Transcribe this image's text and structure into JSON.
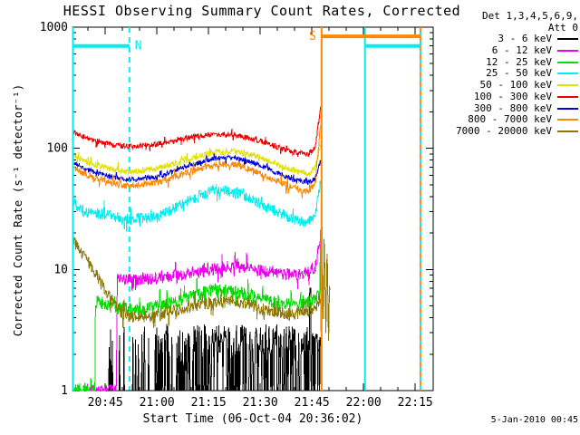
{
  "title": "HESSI Observing Summary Count Rates, Corrected",
  "footer_timestamp": "5-Jan-2010 00:45",
  "legend": {
    "header_line1": "Det 1,3,4,5,6,9,",
    "header_line2": "Att 0",
    "entries": [
      {
        "label": "3 - 6 keV",
        "color": "#000000"
      },
      {
        "label": "6 - 12 keV",
        "color": "#EE00EE"
      },
      {
        "label": "12 - 25 keV",
        "color": "#00DD00"
      },
      {
        "label": "25 - 50 keV",
        "color": "#00EEEE"
      },
      {
        "label": "50 - 100 keV",
        "color": "#E2E200"
      },
      {
        "label": "100 - 300 keV",
        "color": "#EE0000"
      },
      {
        "label": "300 - 800 keV",
        "color": "#0000DD"
      },
      {
        "label": "800 - 7000 keV",
        "color": "#FF8800"
      },
      {
        "label": "7000 - 20000 keV",
        "color": "#8E7700"
      }
    ]
  },
  "axes": {
    "xlabel": "Start Time (06-Oct-04 20:36:02)",
    "ylabel": "Corrected Count Rate (s⁻¹ detector⁻¹)",
    "y_scale": "log",
    "y_range": [
      1,
      1000
    ],
    "x_minor_step_min": 5,
    "x_ticks": [
      {
        "t": 9,
        "label": "20:45"
      },
      {
        "t": 24,
        "label": "21:00"
      },
      {
        "t": 39,
        "label": "21:15"
      },
      {
        "t": 54,
        "label": "21:30"
      },
      {
        "t": 69,
        "label": "21:45"
      },
      {
        "t": 84,
        "label": "22:00"
      },
      {
        "t": 99,
        "label": "22:15"
      }
    ],
    "y_ticks": [
      {
        "v": 1000,
        "label": "1000"
      },
      {
        "v": 100,
        "label": "100"
      },
      {
        "v": 10,
        "label": "10"
      },
      {
        "v": 1,
        "label": "1"
      }
    ]
  },
  "chart_data": {
    "type": "line",
    "title": "HESSI Observing Summary Count Rates, Corrected",
    "x_unit": "minutes after 20:36:02 on 06-Oct-04",
    "series": [
      {
        "name": "3 - 6 keV",
        "color": "#000000",
        "style": "telegraph",
        "t_range": [
          10,
          71.8
        ],
        "base": 1.0,
        "high_log_range": [
          0.3,
          0.55
        ],
        "density_phases": [
          [
            25,
            0.14
          ],
          [
            38,
            0.32
          ],
          [
            72,
            0.6
          ]
        ],
        "spike": {
          "t": 68.5,
          "value": 7
        }
      },
      {
        "name": "6 - 12 keV",
        "color": "#EE00EE",
        "noise": 0.05,
        "points": [
          [
            3,
            1.02
          ],
          [
            12.3,
            1.02
          ],
          [
            12.4,
            8.5
          ],
          [
            20,
            8.2
          ],
          [
            30,
            9
          ],
          [
            40,
            10
          ],
          [
            48,
            10.5
          ],
          [
            56,
            9.5
          ],
          [
            64,
            9
          ],
          [
            70,
            10
          ],
          [
            71.6,
            20
          ],
          [
            71.9,
            12
          ]
        ]
      },
      {
        "name": "12 - 25 keV",
        "color": "#00DD00",
        "noise": 0.055,
        "points": [
          [
            -0.4,
            1.02
          ],
          [
            6.0,
            1.02
          ],
          [
            6.1,
            5.5
          ],
          [
            12,
            4.8
          ],
          [
            20,
            4.6
          ],
          [
            30,
            5.5
          ],
          [
            40,
            6.8
          ],
          [
            48,
            6.5
          ],
          [
            56,
            5.5
          ],
          [
            62,
            5.2
          ],
          [
            68,
            5.4
          ],
          [
            71.2,
            6
          ],
          [
            71.5,
            22
          ],
          [
            71.7,
            1.0
          ]
        ]
      },
      {
        "name": "25 - 50 keV",
        "color": "#00EEEE",
        "noise": 0.045,
        "points": [
          [
            -0.4,
            36
          ],
          [
            3,
            30
          ],
          [
            10,
            28
          ],
          [
            16,
            26
          ],
          [
            24,
            27
          ],
          [
            34,
            38
          ],
          [
            42,
            47
          ],
          [
            48,
            42
          ],
          [
            56,
            33
          ],
          [
            62,
            27
          ],
          [
            67,
            24
          ],
          [
            70,
            27
          ],
          [
            71.6,
            58
          ],
          [
            72,
            40
          ]
        ]
      },
      {
        "name": "50 - 100 keV",
        "color": "#E2E200",
        "noise": 0.026,
        "points": [
          [
            -0.4,
            87
          ],
          [
            4,
            76
          ],
          [
            10,
            68
          ],
          [
            16,
            64
          ],
          [
            24,
            68
          ],
          [
            32,
            80
          ],
          [
            40,
            92
          ],
          [
            46,
            95
          ],
          [
            52,
            88
          ],
          [
            58,
            76
          ],
          [
            64,
            66
          ],
          [
            68,
            62
          ],
          [
            70,
            70
          ],
          [
            71.6,
            110
          ],
          [
            72,
            85
          ]
        ]
      },
      {
        "name": "100 - 300 keV",
        "color": "#EE0000",
        "noise": 0.022,
        "points": [
          [
            -0.4,
            135
          ],
          [
            4,
            120
          ],
          [
            10,
            108
          ],
          [
            16,
            103
          ],
          [
            24,
            108
          ],
          [
            32,
            122
          ],
          [
            40,
            131
          ],
          [
            46,
            129
          ],
          [
            52,
            120
          ],
          [
            58,
            105
          ],
          [
            64,
            92
          ],
          [
            68,
            90
          ],
          [
            70,
            100
          ],
          [
            71.6,
            235
          ],
          [
            72,
            130
          ]
        ]
      },
      {
        "name": "300 - 800 keV",
        "color": "#0000DD",
        "noise": 0.02,
        "points": [
          [
            -0.4,
            76
          ],
          [
            4,
            66
          ],
          [
            10,
            58
          ],
          [
            16,
            55
          ],
          [
            24,
            58
          ],
          [
            32,
            70
          ],
          [
            40,
            82
          ],
          [
            46,
            84
          ],
          [
            52,
            76
          ],
          [
            58,
            64
          ],
          [
            64,
            55
          ],
          [
            68,
            52
          ],
          [
            70,
            57
          ],
          [
            71.6,
            80
          ],
          [
            72,
            65
          ]
        ]
      },
      {
        "name": "800 - 7000 keV",
        "color": "#FF8800",
        "noise": 0.028,
        "points": [
          [
            -0.4,
            69
          ],
          [
            4,
            60
          ],
          [
            10,
            52
          ],
          [
            16,
            49
          ],
          [
            24,
            52
          ],
          [
            32,
            62
          ],
          [
            40,
            72
          ],
          [
            46,
            74
          ],
          [
            52,
            66
          ],
          [
            58,
            55
          ],
          [
            64,
            47
          ],
          [
            68,
            44
          ],
          [
            70,
            52
          ],
          [
            71.6,
            170
          ],
          [
            72,
            95
          ]
        ]
      },
      {
        "name": "7000 - 20000 keV",
        "color": "#8E7700",
        "noise": 0.05,
        "points": [
          [
            -0.4,
            17
          ],
          [
            2,
            14
          ],
          [
            4,
            11.5
          ],
          [
            6,
            9.5
          ],
          [
            8,
            7.5
          ],
          [
            10,
            6
          ],
          [
            12,
            5
          ],
          [
            14,
            4.3
          ],
          [
            18,
            4.0
          ],
          [
            24,
            4.2
          ],
          [
            32,
            4.8
          ],
          [
            40,
            5.4
          ],
          [
            46,
            5.6
          ],
          [
            52,
            5.0
          ],
          [
            58,
            4.4
          ],
          [
            64,
            4.3
          ],
          [
            68,
            4.6
          ],
          [
            70.5,
            5
          ],
          [
            71.6,
            6
          ],
          [
            71.9,
            32
          ],
          [
            72.2,
            3
          ],
          [
            72.6,
            24
          ],
          [
            73.0,
            2.5
          ],
          [
            73.4,
            18
          ],
          [
            73.8,
            2.2
          ],
          [
            74.2,
            10
          ],
          [
            74.3,
            1.5
          ]
        ]
      }
    ],
    "vertical_markers": [
      {
        "time": "20:36",
        "t": -0.4,
        "color": "#00EEEE",
        "dashed": false
      },
      {
        "time": "20:52",
        "t": 16,
        "color": "#00EEEE",
        "dashed": true
      },
      {
        "time": "21:48",
        "t": 71.8,
        "color": "#FF8800",
        "dashed": false
      },
      {
        "time": "22:00",
        "t": 84.4,
        "color": "#00EEEE",
        "dashed": false
      },
      {
        "time": "22:17",
        "t": 100.5,
        "color": "#FF8800",
        "dashed": true,
        "dual_color": "#00EEEE"
      }
    ],
    "horizontal_flags": [
      {
        "label": "N",
        "color": "#00EEEE",
        "value": 700,
        "t_from": -0.4,
        "t_to": 16,
        "label_side": "right"
      },
      {
        "label": "S",
        "color": "#FF8800",
        "value": 840,
        "t_from": 71.8,
        "t_to": 100.5,
        "label_side": "left"
      },
      {
        "label": "",
        "color": "#00EEEE",
        "value": 700,
        "t_from": 84.4,
        "t_to": 100.5,
        "label_side": "none"
      }
    ]
  }
}
